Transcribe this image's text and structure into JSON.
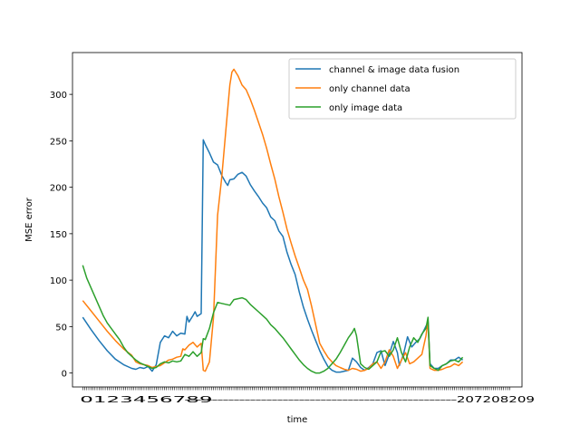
{
  "chart_data": {
    "type": "line",
    "title": "",
    "xlabel": "time",
    "ylabel": "MSE error",
    "xlim": [
      -5,
      215
    ],
    "ylim": [
      -15,
      345
    ],
    "y_ticks": [
      0,
      50,
      100,
      150,
      200,
      250,
      300
    ],
    "x_tick_count": 210,
    "x_tick_note": "x tick labels are a dense overlapping sequence and are illegible",
    "x_tick_text_left": "0123456789",
    "x_tick_text_right": "207208209",
    "grid": false,
    "legend_position": "top-right",
    "colors": {
      "fusion": "#1f77b4",
      "channel": "#ff7f0e",
      "image": "#2ca02c"
    },
    "series": [
      {
        "name": "channel & image data fusion",
        "color": "#1f77b4",
        "points": [
          [
            0,
            60
          ],
          [
            4,
            47
          ],
          [
            8,
            35
          ],
          [
            12,
            24
          ],
          [
            16,
            15
          ],
          [
            20,
            9
          ],
          [
            24,
            5
          ],
          [
            26,
            4
          ],
          [
            28,
            6
          ],
          [
            30,
            5
          ],
          [
            32,
            7
          ],
          [
            34,
            2
          ],
          [
            36,
            9
          ],
          [
            38,
            33
          ],
          [
            40,
            40
          ],
          [
            42,
            38
          ],
          [
            44,
            45
          ],
          [
            46,
            40
          ],
          [
            48,
            43
          ],
          [
            50,
            42
          ],
          [
            51,
            61
          ],
          [
            52,
            55
          ],
          [
            54,
            62
          ],
          [
            55,
            66
          ],
          [
            56,
            61
          ],
          [
            58,
            64
          ],
          [
            59,
            251
          ],
          [
            60,
            246
          ],
          [
            62,
            237
          ],
          [
            64,
            227
          ],
          [
            66,
            224
          ],
          [
            68,
            213
          ],
          [
            70,
            205
          ],
          [
            71,
            202
          ],
          [
            72,
            208
          ],
          [
            74,
            209
          ],
          [
            76,
            214
          ],
          [
            78,
            216
          ],
          [
            80,
            212
          ],
          [
            82,
            203
          ],
          [
            84,
            196
          ],
          [
            86,
            190
          ],
          [
            88,
            183
          ],
          [
            90,
            178
          ],
          [
            92,
            168
          ],
          [
            94,
            164
          ],
          [
            96,
            153
          ],
          [
            98,
            147
          ],
          [
            100,
            130
          ],
          [
            102,
            117
          ],
          [
            104,
            106
          ],
          [
            106,
            87
          ],
          [
            108,
            71
          ],
          [
            110,
            58
          ],
          [
            112,
            46
          ],
          [
            114,
            35
          ],
          [
            116,
            24
          ],
          [
            118,
            15
          ],
          [
            120,
            7
          ],
          [
            122,
            3
          ],
          [
            124,
            1
          ],
          [
            126,
            1
          ],
          [
            128,
            2
          ],
          [
            130,
            3
          ],
          [
            132,
            16
          ],
          [
            134,
            12
          ],
          [
            136,
            6
          ],
          [
            138,
            3
          ],
          [
            140,
            6
          ],
          [
            142,
            10
          ],
          [
            144,
            22
          ],
          [
            146,
            24
          ],
          [
            148,
            8
          ],
          [
            150,
            20
          ],
          [
            152,
            34
          ],
          [
            154,
            22
          ],
          [
            155,
            8
          ],
          [
            157,
            20
          ],
          [
            159,
            39
          ],
          [
            161,
            28
          ],
          [
            163,
            33
          ],
          [
            165,
            37
          ],
          [
            167,
            46
          ],
          [
            169,
            55
          ],
          [
            170,
            10
          ],
          [
            172,
            5
          ],
          [
            174,
            5
          ],
          [
            176,
            8
          ],
          [
            178,
            10
          ],
          [
            180,
            14
          ],
          [
            182,
            14
          ],
          [
            184,
            17
          ],
          [
            186,
            14
          ]
        ]
      },
      {
        "name": "only channel data",
        "color": "#ff7f0e",
        "points": [
          [
            0,
            78
          ],
          [
            4,
            67
          ],
          [
            8,
            56
          ],
          [
            12,
            45
          ],
          [
            16,
            35
          ],
          [
            20,
            26
          ],
          [
            24,
            19
          ],
          [
            26,
            12
          ],
          [
            28,
            10
          ],
          [
            30,
            9
          ],
          [
            32,
            8
          ],
          [
            34,
            6
          ],
          [
            36,
            7
          ],
          [
            38,
            8
          ],
          [
            40,
            11
          ],
          [
            42,
            14
          ],
          [
            44,
            15
          ],
          [
            46,
            17
          ],
          [
            48,
            18
          ],
          [
            49,
            26
          ],
          [
            50,
            25
          ],
          [
            52,
            30
          ],
          [
            54,
            33
          ],
          [
            56,
            28
          ],
          [
            58,
            32
          ],
          [
            59,
            3
          ],
          [
            60,
            2
          ],
          [
            62,
            12
          ],
          [
            64,
            60
          ],
          [
            66,
            170
          ],
          [
            68,
            210
          ],
          [
            70,
            260
          ],
          [
            72,
            310
          ],
          [
            73,
            324
          ],
          [
            74,
            327
          ],
          [
            76,
            320
          ],
          [
            78,
            310
          ],
          [
            80,
            305
          ],
          [
            82,
            295
          ],
          [
            84,
            283
          ],
          [
            86,
            270
          ],
          [
            88,
            257
          ],
          [
            90,
            242
          ],
          [
            92,
            225
          ],
          [
            94,
            209
          ],
          [
            96,
            190
          ],
          [
            98,
            173
          ],
          [
            100,
            155
          ],
          [
            102,
            140
          ],
          [
            104,
            126
          ],
          [
            106,
            113
          ],
          [
            108,
            100
          ],
          [
            110,
            90
          ],
          [
            112,
            72
          ],
          [
            114,
            52
          ],
          [
            116,
            32
          ],
          [
            118,
            24
          ],
          [
            120,
            17
          ],
          [
            122,
            12
          ],
          [
            124,
            8
          ],
          [
            126,
            6
          ],
          [
            128,
            4
          ],
          [
            130,
            3
          ],
          [
            132,
            5
          ],
          [
            134,
            4
          ],
          [
            136,
            2
          ],
          [
            138,
            3
          ],
          [
            140,
            5
          ],
          [
            142,
            10
          ],
          [
            144,
            12
          ],
          [
            146,
            5
          ],
          [
            148,
            12
          ],
          [
            150,
            25
          ],
          [
            152,
            18
          ],
          [
            154,
            5
          ],
          [
            156,
            14
          ],
          [
            158,
            22
          ],
          [
            160,
            10
          ],
          [
            162,
            12
          ],
          [
            164,
            16
          ],
          [
            166,
            20
          ],
          [
            168,
            40
          ],
          [
            169,
            56
          ],
          [
            170,
            5
          ],
          [
            172,
            3
          ],
          [
            174,
            3
          ],
          [
            176,
            4
          ],
          [
            178,
            6
          ],
          [
            180,
            7
          ],
          [
            182,
            10
          ],
          [
            184,
            8
          ],
          [
            186,
            12
          ]
        ]
      },
      {
        "name": "only image data",
        "color": "#2ca02c",
        "points": [
          [
            0,
            116
          ],
          [
            2,
            102
          ],
          [
            4,
            92
          ],
          [
            6,
            82
          ],
          [
            8,
            72
          ],
          [
            10,
            62
          ],
          [
            12,
            54
          ],
          [
            14,
            48
          ],
          [
            16,
            42
          ],
          [
            18,
            36
          ],
          [
            20,
            28
          ],
          [
            22,
            22
          ],
          [
            24,
            18
          ],
          [
            26,
            14
          ],
          [
            28,
            11
          ],
          [
            30,
            9
          ],
          [
            32,
            7
          ],
          [
            34,
            5
          ],
          [
            36,
            6
          ],
          [
            38,
            10
          ],
          [
            40,
            12
          ],
          [
            42,
            11
          ],
          [
            44,
            13
          ],
          [
            46,
            12
          ],
          [
            48,
            13
          ],
          [
            50,
            20
          ],
          [
            52,
            18
          ],
          [
            54,
            23
          ],
          [
            56,
            18
          ],
          [
            58,
            22
          ],
          [
            59,
            37
          ],
          [
            60,
            36
          ],
          [
            62,
            48
          ],
          [
            64,
            65
          ],
          [
            66,
            76
          ],
          [
            68,
            75
          ],
          [
            70,
            74
          ],
          [
            72,
            73
          ],
          [
            74,
            79
          ],
          [
            76,
            80
          ],
          [
            78,
            81
          ],
          [
            80,
            79
          ],
          [
            82,
            74
          ],
          [
            84,
            70
          ],
          [
            86,
            66
          ],
          [
            88,
            62
          ],
          [
            90,
            58
          ],
          [
            92,
            52
          ],
          [
            94,
            48
          ],
          [
            96,
            43
          ],
          [
            98,
            38
          ],
          [
            100,
            32
          ],
          [
            102,
            26
          ],
          [
            104,
            20
          ],
          [
            106,
            14
          ],
          [
            108,
            9
          ],
          [
            110,
            5
          ],
          [
            112,
            2
          ],
          [
            114,
            0
          ],
          [
            116,
            0
          ],
          [
            118,
            2
          ],
          [
            120,
            5
          ],
          [
            122,
            10
          ],
          [
            124,
            15
          ],
          [
            126,
            22
          ],
          [
            128,
            30
          ],
          [
            130,
            38
          ],
          [
            132,
            44
          ],
          [
            133,
            48
          ],
          [
            134,
            40
          ],
          [
            136,
            10
          ],
          [
            138,
            6
          ],
          [
            140,
            4
          ],
          [
            142,
            8
          ],
          [
            144,
            12
          ],
          [
            146,
            23
          ],
          [
            148,
            24
          ],
          [
            150,
            18
          ],
          [
            152,
            25
          ],
          [
            154,
            38
          ],
          [
            156,
            22
          ],
          [
            158,
            12
          ],
          [
            160,
            28
          ],
          [
            162,
            38
          ],
          [
            164,
            33
          ],
          [
            166,
            42
          ],
          [
            168,
            48
          ],
          [
            169,
            60
          ],
          [
            170,
            8
          ],
          [
            172,
            5
          ],
          [
            174,
            3
          ],
          [
            176,
            8
          ],
          [
            178,
            10
          ],
          [
            180,
            13
          ],
          [
            182,
            14
          ],
          [
            184,
            12
          ],
          [
            186,
            17
          ]
        ]
      }
    ]
  }
}
